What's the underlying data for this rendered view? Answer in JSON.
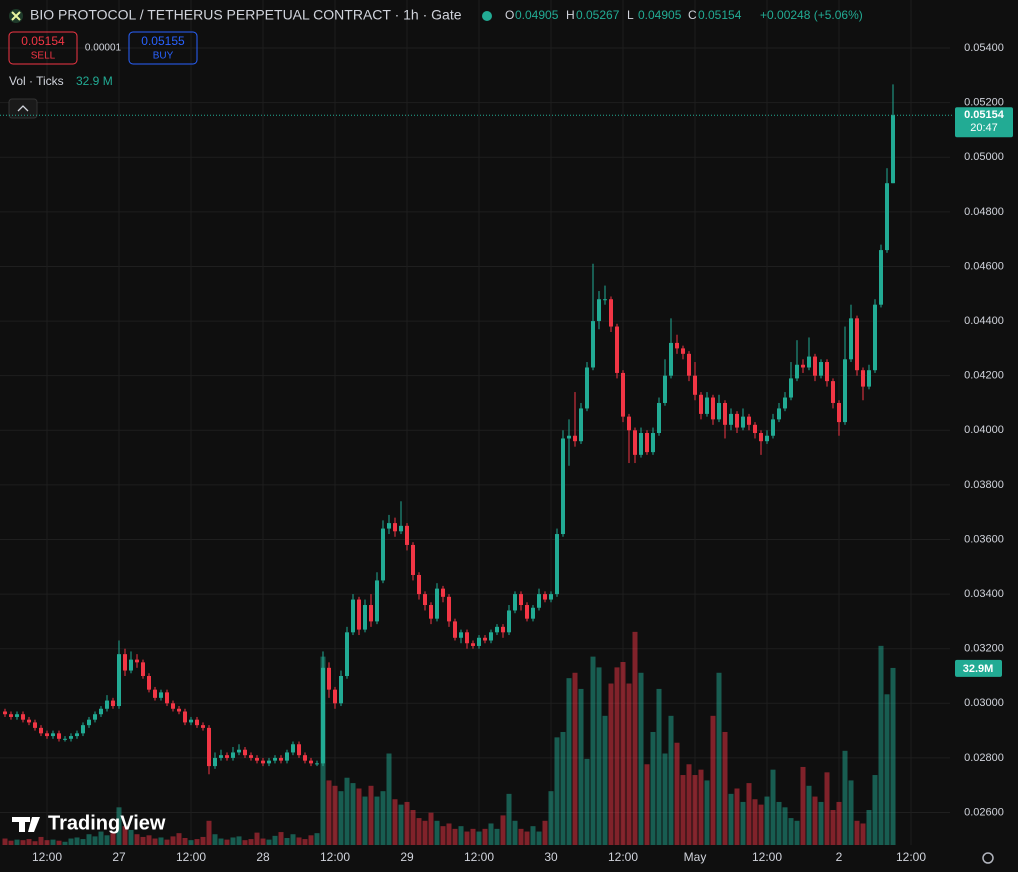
{
  "chart_data": {
    "type": "candlestick",
    "title": "BIO PROTOCOL / TETHERUS PERPETUAL CONTRACT · 1h · Gate",
    "ohlc_labels": [
      "O",
      "H",
      "L",
      "C"
    ],
    "change": "+0.00248 (+5.06%)",
    "sell_price": 0.05154,
    "sell_label": "SELL",
    "spread": 1e-05,
    "buy_price": 0.05155,
    "buy_label": "BUY",
    "volume_indicator": "Vol · Ticks",
    "volume_last_label": "32.9 M",
    "volume_axis_label": "32.9M",
    "countdown": "20:47",
    "watermark": "TradingView",
    "up_color": "#22ab94",
    "down_color": "#f23645",
    "grid": true,
    "ylim": [
      0.02481,
      0.05576
    ],
    "yticks": [
      {
        "value": 0.026,
        "label": "0.02600"
      },
      {
        "value": 0.028,
        "label": "0.02800"
      },
      {
        "value": 0.03,
        "label": "0.03000"
      },
      {
        "value": 0.032,
        "label": "0.03200"
      },
      {
        "value": 0.034,
        "label": "0.03400"
      },
      {
        "value": 0.036,
        "label": "0.03600"
      },
      {
        "value": 0.038,
        "label": "0.03800"
      },
      {
        "value": 0.04,
        "label": "0.04000"
      },
      {
        "value": 0.042,
        "label": "0.04200"
      },
      {
        "value": 0.044,
        "label": "0.04400"
      },
      {
        "value": 0.046,
        "label": "0.04600"
      },
      {
        "value": 0.048,
        "label": "0.04800"
      },
      {
        "value": 0.05,
        "label": "0.05000"
      },
      {
        "value": 0.052,
        "label": "0.05200"
      },
      {
        "value": 0.054,
        "label": "0.05400"
      }
    ],
    "xlim": [
      -0.833,
      157.5
    ],
    "xticks": [
      {
        "value": 7,
        "label": "12:00"
      },
      {
        "value": 19,
        "label": "27"
      },
      {
        "value": 31,
        "label": "12:00"
      },
      {
        "value": 43,
        "label": "28"
      },
      {
        "value": 55,
        "label": "12:00"
      },
      {
        "value": 67,
        "label": "29"
      },
      {
        "value": 79,
        "label": "12:00"
      },
      {
        "value": 91,
        "label": "30"
      },
      {
        "value": 103,
        "label": "12:00"
      },
      {
        "value": 115,
        "label": "May"
      },
      {
        "value": 127,
        "label": "12:00"
      },
      {
        "value": 139,
        "label": "2"
      },
      {
        "value": 151,
        "label": "12:00"
      }
    ],
    "volume_lim": [
      0,
      157
    ],
    "open": [
      0.0297,
      0.0296,
      0.0295,
      0.0296,
      0.0294,
      0.0293,
      0.0291,
      0.0289,
      0.0288,
      0.0289,
      0.0287,
      0.0287,
      0.0288,
      0.0289,
      0.0292,
      0.0294,
      0.0296,
      0.0298,
      0.0301,
      0.0299,
      0.0318,
      0.0312,
      0.0316,
      0.0315,
      0.031,
      0.0305,
      0.0302,
      0.0304,
      0.03,
      0.0298,
      0.0297,
      0.0293,
      0.0294,
      0.0292,
      0.0291,
      0.0277,
      0.028,
      0.0281,
      0.028,
      0.0282,
      0.0283,
      0.0281,
      0.028,
      0.0279,
      0.0278,
      0.0279,
      0.028,
      0.0279,
      0.0282,
      0.0285,
      0.0281,
      0.0279,
      0.0278,
      0.0278,
      0.0313,
      0.0305,
      0.03,
      0.031,
      0.0326,
      0.0338,
      0.0327,
      0.0336,
      0.033,
      0.0345,
      0.0364,
      0.0366,
      0.0363,
      0.0365,
      0.0358,
      0.0347,
      0.034,
      0.0336,
      0.0331,
      0.0342,
      0.0339,
      0.033,
      0.0324,
      0.0326,
      0.0322,
      0.0321,
      0.0324,
      0.0323,
      0.0326,
      0.0328,
      0.0326,
      0.0334,
      0.034,
      0.0336,
      0.0331,
      0.0335,
      0.034,
      0.0338,
      0.034,
      0.0362,
      0.0397,
      0.0398,
      0.0396,
      0.0408,
      0.0423,
      0.044,
      0.0448,
      0.0448,
      0.0438,
      0.0421,
      0.0405,
      0.04,
      0.0391,
      0.0399,
      0.0392,
      0.0399,
      0.041,
      0.042,
      0.0432,
      0.043,
      0.0428,
      0.042,
      0.0413,
      0.0406,
      0.0412,
      0.0404,
      0.041,
      0.0402,
      0.0406,
      0.0401,
      0.0405,
      0.0402,
      0.0399,
      0.0396,
      0.0398,
      0.0404,
      0.0408,
      0.0412,
      0.0419,
      0.0424,
      0.0423,
      0.0427,
      0.042,
      0.0425,
      0.0418,
      0.041,
      0.0403,
      0.0426,
      0.0441,
      0.0422,
      0.0416,
      0.0422,
      0.0446,
      0.0466,
      0.04905
    ],
    "high": [
      0.0298,
      0.0297,
      0.0297,
      0.0297,
      0.0295,
      0.0294,
      0.0292,
      0.029,
      0.029,
      0.029,
      0.0288,
      0.0289,
      0.029,
      0.0293,
      0.0295,
      0.0297,
      0.0299,
      0.0303,
      0.0302,
      0.0323,
      0.032,
      0.0319,
      0.0318,
      0.0316,
      0.0311,
      0.0306,
      0.0305,
      0.0305,
      0.0301,
      0.0299,
      0.0298,
      0.0295,
      0.0295,
      0.0293,
      0.0292,
      0.0282,
      0.0283,
      0.0282,
      0.0284,
      0.0285,
      0.0284,
      0.0282,
      0.0281,
      0.028,
      0.028,
      0.0281,
      0.0281,
      0.0283,
      0.0286,
      0.0286,
      0.0282,
      0.028,
      0.0279,
      0.0319,
      0.0315,
      0.0306,
      0.0312,
      0.0328,
      0.034,
      0.0339,
      0.0338,
      0.034,
      0.0348,
      0.0367,
      0.0369,
      0.0368,
      0.0374,
      0.0366,
      0.0359,
      0.0348,
      0.0341,
      0.0337,
      0.0344,
      0.0343,
      0.034,
      0.0331,
      0.0327,
      0.0327,
      0.0323,
      0.0325,
      0.0325,
      0.0327,
      0.0329,
      0.0329,
      0.0336,
      0.0341,
      0.0341,
      0.0337,
      0.0336,
      0.0342,
      0.0341,
      0.0341,
      0.0364,
      0.04,
      0.0404,
      0.0414,
      0.041,
      0.0425,
      0.0461,
      0.0451,
      0.0453,
      0.0449,
      0.0439,
      0.0422,
      0.0406,
      0.0401,
      0.0401,
      0.04,
      0.0401,
      0.0412,
      0.0426,
      0.0441,
      0.0435,
      0.0431,
      0.0429,
      0.0425,
      0.0414,
      0.0414,
      0.0413,
      0.0413,
      0.0411,
      0.0408,
      0.0407,
      0.0408,
      0.0406,
      0.0403,
      0.04,
      0.04,
      0.0406,
      0.041,
      0.0414,
      0.0425,
      0.0433,
      0.0426,
      0.0434,
      0.0428,
      0.0426,
      0.0426,
      0.0419,
      0.0411,
      0.0438,
      0.0446,
      0.0442,
      0.0423,
      0.0424,
      0.0448,
      0.0468,
      0.0496,
      0.05267
    ],
    "low": [
      0.0295,
      0.0294,
      0.0294,
      0.0293,
      0.0292,
      0.029,
      0.0288,
      0.0287,
      0.0287,
      0.0286,
      0.0286,
      0.0286,
      0.0287,
      0.0288,
      0.0291,
      0.0293,
      0.0295,
      0.0297,
      0.0298,
      0.0298,
      0.031,
      0.0311,
      0.0313,
      0.0309,
      0.0304,
      0.0301,
      0.0301,
      0.0299,
      0.0297,
      0.0296,
      0.0292,
      0.0292,
      0.0291,
      0.029,
      0.0274,
      0.0276,
      0.0279,
      0.0279,
      0.0279,
      0.0281,
      0.028,
      0.0279,
      0.0278,
      0.0277,
      0.0277,
      0.0278,
      0.0278,
      0.0278,
      0.0281,
      0.028,
      0.0278,
      0.0277,
      0.0277,
      0.0277,
      0.0302,
      0.0298,
      0.0299,
      0.0309,
      0.0325,
      0.0325,
      0.0326,
      0.0328,
      0.0329,
      0.0344,
      0.0362,
      0.0361,
      0.0362,
      0.0356,
      0.0345,
      0.0338,
      0.0334,
      0.0329,
      0.033,
      0.0337,
      0.0328,
      0.0323,
      0.0322,
      0.032,
      0.032,
      0.032,
      0.0322,
      0.0322,
      0.0325,
      0.0324,
      0.0325,
      0.0333,
      0.0334,
      0.033,
      0.033,
      0.0334,
      0.0337,
      0.0337,
      0.0339,
      0.0361,
      0.0387,
      0.0394,
      0.0395,
      0.0407,
      0.0422,
      0.0437,
      0.0446,
      0.0436,
      0.0419,
      0.0403,
      0.0388,
      0.0388,
      0.039,
      0.0391,
      0.0391,
      0.0398,
      0.0409,
      0.0419,
      0.0428,
      0.0426,
      0.0418,
      0.0411,
      0.0404,
      0.0405,
      0.0402,
      0.0403,
      0.0397,
      0.04,
      0.0399,
      0.04,
      0.04,
      0.0397,
      0.0391,
      0.0395,
      0.0397,
      0.0403,
      0.0407,
      0.0411,
      0.0418,
      0.0421,
      0.0422,
      0.0418,
      0.0419,
      0.0416,
      0.0408,
      0.0398,
      0.0402,
      0.0425,
      0.042,
      0.0411,
      0.0415,
      0.0421,
      0.0445,
      0.0465,
      0.04905
    ],
    "close": [
      0.0296,
      0.0295,
      0.0296,
      0.0294,
      0.0293,
      0.0291,
      0.0289,
      0.0288,
      0.0289,
      0.0287,
      0.0287,
      0.0288,
      0.0289,
      0.0292,
      0.0294,
      0.0296,
      0.0298,
      0.0301,
      0.0299,
      0.0318,
      0.0312,
      0.0316,
      0.0315,
      0.031,
      0.0305,
      0.0302,
      0.0304,
      0.03,
      0.0298,
      0.0297,
      0.0293,
      0.0294,
      0.0292,
      0.0291,
      0.0277,
      0.028,
      0.0281,
      0.028,
      0.0282,
      0.0283,
      0.0281,
      0.028,
      0.0279,
      0.0278,
      0.0279,
      0.028,
      0.0279,
      0.0282,
      0.0285,
      0.0281,
      0.0279,
      0.0278,
      0.0278,
      0.0313,
      0.0305,
      0.03,
      0.031,
      0.0326,
      0.0338,
      0.0327,
      0.0336,
      0.033,
      0.0345,
      0.0364,
      0.0366,
      0.0363,
      0.0365,
      0.0358,
      0.0347,
      0.034,
      0.0336,
      0.0331,
      0.0342,
      0.0339,
      0.033,
      0.0324,
      0.0326,
      0.0322,
      0.0321,
      0.0324,
      0.0323,
      0.0326,
      0.0328,
      0.0326,
      0.0334,
      0.034,
      0.0336,
      0.0331,
      0.0335,
      0.034,
      0.0338,
      0.034,
      0.0362,
      0.0397,
      0.0398,
      0.0396,
      0.0408,
      0.0423,
      0.044,
      0.0448,
      0.0448,
      0.0438,
      0.0421,
      0.0405,
      0.04,
      0.0391,
      0.0399,
      0.0392,
      0.0399,
      0.041,
      0.042,
      0.0432,
      0.043,
      0.0428,
      0.042,
      0.0413,
      0.0406,
      0.0412,
      0.0404,
      0.041,
      0.0402,
      0.0406,
      0.0401,
      0.0405,
      0.0402,
      0.0399,
      0.0396,
      0.0398,
      0.0404,
      0.0408,
      0.0412,
      0.0419,
      0.0424,
      0.0423,
      0.0427,
      0.042,
      0.0425,
      0.0418,
      0.041,
      0.0403,
      0.0426,
      0.0441,
      0.0422,
      0.0416,
      0.0422,
      0.0446,
      0.0466,
      0.04905,
      0.05154
    ],
    "volume": [
      1.2,
      0.8,
      1,
      0.9,
      1.1,
      0.7,
      1.5,
      0.9,
      1,
      0.8,
      0.6,
      1.2,
      1.4,
      1.1,
      2,
      1.6,
      2.5,
      1.8,
      2.2,
      7,
      3.5,
      2.8,
      2,
      1.5,
      1.8,
      1.2,
      1.4,
      1,
      1.6,
      2.2,
      1.3,
      0.9,
      1.1,
      1.5,
      4.5,
      2,
      1.2,
      1,
      1.4,
      1.6,
      0.9,
      1.1,
      2.3,
      1.2,
      1,
      1.7,
      2.4,
      1.3,
      2,
      1.4,
      1.1,
      1.8,
      2.2,
      35,
      12,
      11,
      10,
      12.5,
      11.5,
      10.5,
      9,
      11,
      9,
      10,
      17,
      8.5,
      7.5,
      8,
      6.5,
      5,
      4.5,
      6,
      4.5,
      3.5,
      4,
      3,
      3.5,
      2.5,
      3,
      2.5,
      3,
      4,
      3,
      5.5,
      9.5,
      4.5,
      3,
      2.5,
      3.5,
      2.5,
      4.5,
      10,
      20,
      21,
      31,
      32,
      29,
      16,
      35,
      33,
      24,
      30,
      33,
      34,
      30,
      39.6,
      32,
      15,
      21,
      29,
      17,
      24,
      19,
      13,
      15,
      13,
      14,
      12,
      24,
      32,
      21,
      9.5,
      10.5,
      8,
      11.5,
      8.5,
      7.5,
      9,
      14,
      8,
      7,
      5,
      4.5,
      14.5,
      11,
      9,
      8,
      13.5,
      6.5,
      8,
      17.5,
      12,
      4.5,
      4,
      6.5,
      13,
      37,
      28,
      32.9
    ]
  }
}
